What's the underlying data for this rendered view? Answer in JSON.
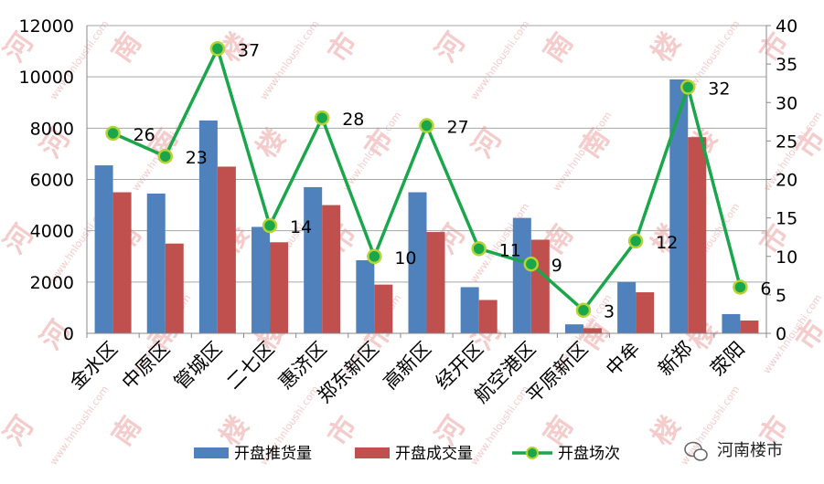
{
  "chart_data": {
    "type": "bar",
    "categories": [
      "金水区",
      "中原区",
      "管城区",
      "二七区",
      "惠济区",
      "郑东新区",
      "高新区",
      "经开区",
      "航空港区",
      "平原新区",
      "中牟",
      "新郑",
      "荥阳"
    ],
    "series": [
      {
        "name": "开盘推货量",
        "type": "bar",
        "axis": "left",
        "color": "#4f81bd",
        "values": [
          6550,
          5450,
          8300,
          4150,
          5700,
          2850,
          5500,
          1800,
          4500,
          350,
          2000,
          9900,
          750
        ]
      },
      {
        "name": "开盘成交量",
        "type": "bar",
        "axis": "left",
        "color": "#c0504d",
        "values": [
          5500,
          3500,
          6500,
          3550,
          5000,
          1900,
          3950,
          1300,
          3650,
          200,
          1600,
          7650,
          500
        ]
      },
      {
        "name": "开盘场次",
        "type": "line",
        "axis": "right",
        "color": "#1aa64a",
        "marker_color": "#b5d334",
        "values": [
          26,
          23,
          37,
          14,
          28,
          10,
          27,
          11,
          9,
          3,
          12,
          32,
          6
        ]
      }
    ],
    "y_left": {
      "min": 0,
      "max": 12000,
      "ticks": [
        "0",
        "2000",
        "4000",
        "6000",
        "8000",
        "10000",
        "12000"
      ]
    },
    "y_right": {
      "min": 0,
      "max": 40,
      "ticks": [
        "0",
        "5",
        "10",
        "15",
        "20",
        "25",
        "30",
        "35",
        "40"
      ]
    },
    "grid": true,
    "legend_position": "bottom"
  },
  "watermark": {
    "brand": "河南楼市",
    "url": "www.hnloushi.com",
    "glyphs": [
      "河",
      "南",
      "楼",
      "市"
    ]
  }
}
